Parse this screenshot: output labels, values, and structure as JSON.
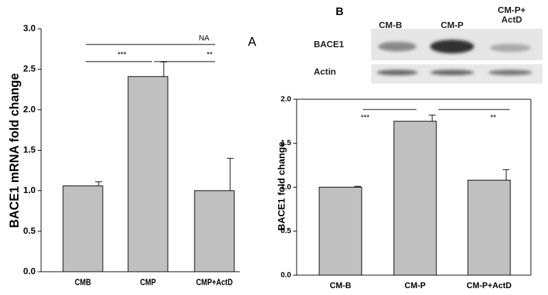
{
  "chart_data": [
    {
      "type": "bar",
      "panel_label": "A",
      "y_label": "BACE1 mRNA fold change",
      "categories": [
        "CMB",
        "CMP",
        "CMP+ActD"
      ],
      "values": [
        1.06,
        2.41,
        1.0
      ],
      "errors": [
        0.05,
        0.18,
        0.4
      ],
      "color": "#c0c0c0",
      "ylim": [
        0,
        3
      ],
      "yticks": [
        {
          "value": 0,
          "label": "0.0"
        },
        {
          "value": 0.5,
          "label": "0.5"
        },
        {
          "value": 1,
          "label": "1.0"
        },
        {
          "value": 1.5,
          "label": "1.5"
        },
        {
          "value": 2,
          "label": "2.0"
        },
        {
          "value": 2.5,
          "label": "2.5"
        },
        {
          "value": 3,
          "label": "3.0"
        }
      ],
      "annotations": [
        "NA",
        "***",
        "**"
      ]
    },
    {
      "type": "bar",
      "panel_label": "B",
      "y_label": "BACE1 fold change",
      "categories": [
        "CM-B",
        "CM-P",
        "CM-P+ActD"
      ],
      "values": [
        1.0,
        1.75,
        1.08
      ],
      "errors": [
        0.01,
        0.07,
        0.12
      ],
      "color": "#c0c0c0",
      "ylim": [
        0,
        2
      ],
      "yticks": [
        {
          "value": 0,
          "label": "0.0"
        },
        {
          "value": 0.5,
          "label": "0.5"
        },
        {
          "value": 1,
          "label": "1.0"
        },
        {
          "value": 1.5,
          "label": "1.5"
        },
        {
          "value": 2,
          "label": "2.0"
        }
      ],
      "annotations": [
        "***",
        "**"
      ]
    }
  ],
  "blot": {
    "lanes": [
      "CM-B",
      "CM-P",
      "CM-P+ ActD"
    ],
    "rows": [
      "BACE1",
      "Actin"
    ]
  }
}
